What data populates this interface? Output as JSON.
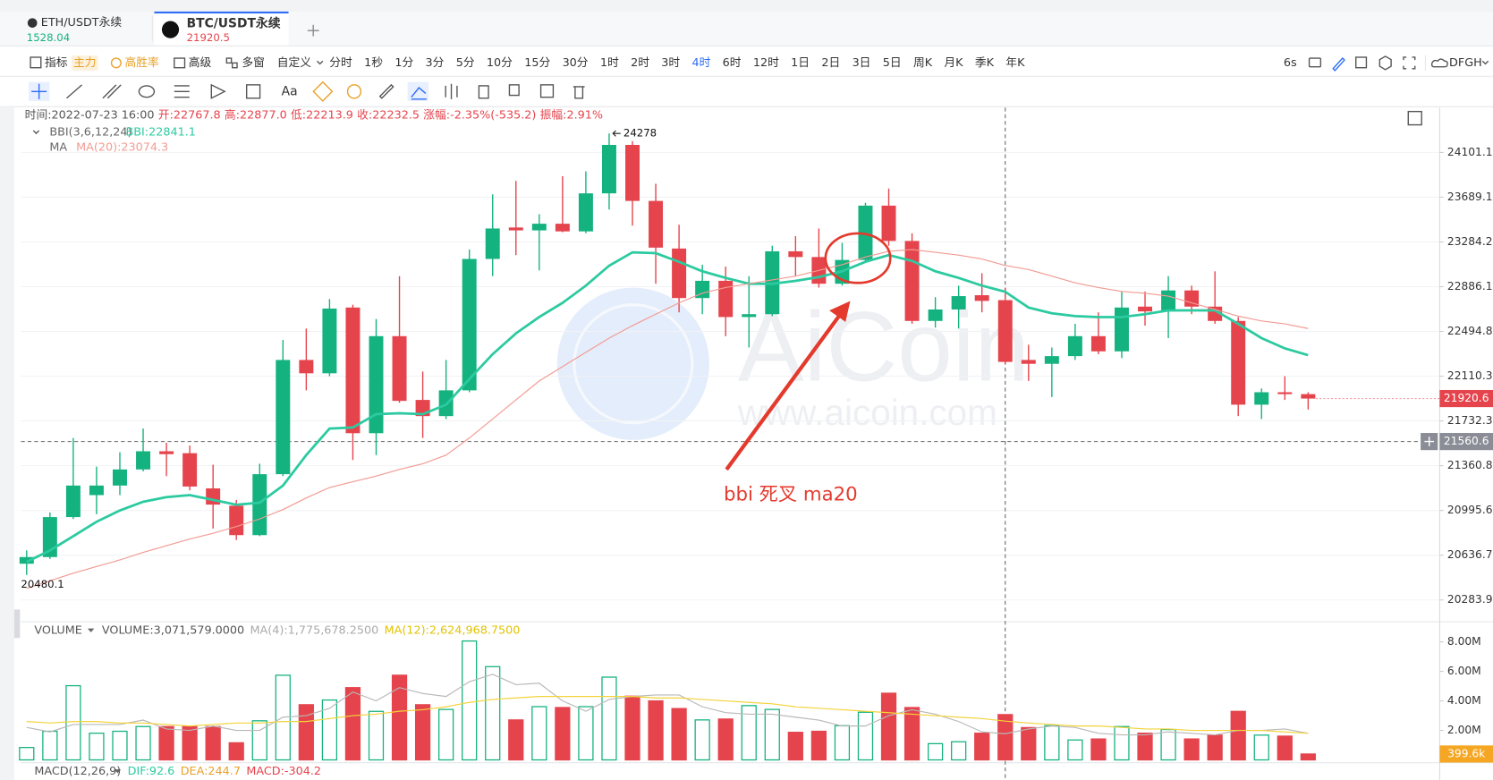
{
  "tabs": [
    {
      "symbol": "ETH/USDT永续",
      "price": "1528.04"
    },
    {
      "symbol": "BTC/USDT永续",
      "price": "21920.5"
    }
  ],
  "toolbar": {
    "tools": [
      "指标",
      "主力",
      "高胜率",
      "高级",
      "多窗",
      "自定义"
    ],
    "intervals": [
      "分时",
      "1秒",
      "1分",
      "3分",
      "5分",
      "10分",
      "15分",
      "30分",
      "1时",
      "2时",
      "3时",
      "4时",
      "6时",
      "12时",
      "1日",
      "2日",
      "3日",
      "5日",
      "周K",
      "月K",
      "季K",
      "年K"
    ],
    "active_interval": 11,
    "refresh": "6s",
    "user": "DFGH"
  },
  "drawing_toolbar": {
    "text_tool": "Aa"
  },
  "info_bar": [
    "时间:2022-07-23 16:00",
    "开:22767.8",
    "高:22877.0",
    "低:22213.9",
    "收:22232.5",
    "涨幅:-2.35%(-535.2)",
    "振幅:2.91%"
  ],
  "indicators": {
    "bbi_name": "BBI(3,6,12,24)",
    "bbi_value": "BBI:22841.1",
    "ma_name": "MA",
    "ma_value": "MA(20):23074.3"
  },
  "watermark": {
    "brand": "AiCoin",
    "url": "www.aicoin.com"
  },
  "annotation": "bbi 死叉 ma20",
  "volume_header": {
    "name": "VOLUME",
    "values": [
      "VOLUME:3,071,579.0000",
      "MA(4):1,775,678.2500",
      "MA(12):2,624,968.7500"
    ]
  },
  "macd_header": [
    "MACD(12,26,9)",
    "DIF:92.6",
    "DEA:244.7",
    "MACD:-304.2"
  ],
  "chart_data": [
    {
      "type": "candlestick",
      "open": [
        20569,
        20622,
        20942,
        21120,
        21198,
        21330,
        21480,
        21464,
        21175,
        21034,
        20797,
        21291,
        22249,
        22135,
        22703,
        21630,
        22454,
        21909,
        21773,
        21990,
        23132,
        23414,
        23388,
        23448,
        23379,
        23724,
        24171,
        23655,
        23225,
        22786,
        22938,
        22620,
        22645,
        23200,
        23149,
        22912,
        23123,
        23612,
        23293,
        22586,
        22686,
        22811,
        22767.8,
        22249,
        22216,
        22282,
        22454,
        22323,
        22711,
        22669,
        22853,
        22711,
        22586,
        21869,
        21974,
        21958
      ],
      "high": [
        20675,
        20980,
        21590,
        21353,
        21472,
        21669,
        21551,
        21527,
        21369,
        21081,
        21377,
        22421,
        22520,
        22778,
        22728,
        22603,
        22979,
        22150,
        22249,
        23216,
        23715,
        23838,
        23534,
        23882,
        23926,
        24278,
        24206,
        23812,
        23439,
        23081,
        23064,
        22979,
        23250,
        23336,
        23405,
        23276,
        23638,
        23768,
        23362,
        22794,
        22895,
        23005,
        22877.0,
        22380,
        22356,
        22561,
        22661,
        22844,
        22844,
        22979,
        22895,
        23022,
        22620,
        22006,
        22110,
        21974
      ],
      "low": [
        20480.1,
        20607,
        20927,
        20965,
        21120,
        21314,
        21275,
        21159,
        20850,
        20758,
        20789,
        21275,
        21990,
        22110,
        21408,
        21448,
        21885,
        21590,
        21748,
        21974,
        22979,
        23166,
        23030,
        23371,
        23362,
        23577,
        23431,
        22912,
        22661,
        22645,
        22454,
        22356,
        22628,
        22979,
        22878,
        22895,
        23106,
        23250,
        22561,
        22528,
        22520,
        22661,
        22213.9,
        22070,
        21933,
        22249,
        22298,
        22265,
        22545,
        22437,
        22645,
        22561,
        21773,
        21748,
        21909,
        21828
      ],
      "close": [
        20622,
        20942,
        21198,
        21198,
        21330,
        21480,
        21456,
        21190,
        21043,
        20797,
        21291,
        22249,
        22135,
        22694,
        21630,
        22454,
        21901,
        21773,
        21990,
        23132,
        23405,
        23388,
        23448,
        23379,
        23724,
        24171,
        23655,
        23233,
        22786,
        22938,
        22620,
        22645,
        23200,
        23149,
        22912,
        23123,
        23612,
        23293,
        22586,
        22686,
        22803,
        22761,
        22232.5,
        22216,
        22282,
        22454,
        22323,
        22703,
        22669,
        22853,
        22711,
        22586,
        21869,
        21974,
        21958,
        21920.6
      ],
      "up_color": "#14b27f",
      "down_color": "#e5444d",
      "series": [
        {
          "color": "#2ccaa0",
          "values": [
            20584,
            20675,
            20789,
            20904,
            20996,
            21066,
            21104,
            21120,
            21081,
            21042,
            21058,
            21198,
            21448,
            21669,
            21677,
            21789,
            21797,
            21789,
            21869,
            22086,
            22298,
            22478,
            22620,
            22744,
            22895,
            23072,
            23191,
            23183,
            23106,
            23022,
            22963,
            22912,
            22912,
            22937,
            22971,
            23022,
            23106,
            23166,
            23115,
            23022,
            22963,
            22895,
            22841.1,
            22703,
            22653,
            22628,
            22620,
            22620,
            22645,
            22678,
            22678,
            22678,
            22561,
            22437,
            22348,
            22290
          ]
        },
        {
          "color": "#f29b93",
          "values": [
            20374,
            20434,
            20494,
            20547,
            20599,
            20659,
            20713,
            20766,
            20812,
            20866,
            20927,
            21003,
            21097,
            21182,
            21229,
            21275,
            21330,
            21377,
            21448,
            21590,
            21748,
            21909,
            22070,
            22192,
            22315,
            22437,
            22545,
            22645,
            22744,
            22828,
            22878,
            22912,
            22946,
            22979,
            23030,
            23081,
            23149,
            23200,
            23216,
            23191,
            23166,
            23132,
            23074.3,
            23038,
            22979,
            22920,
            22878,
            22844,
            22828,
            22803,
            22744,
            22686,
            22628,
            22586,
            22561,
            22520
          ]
        }
      ],
      "ylim": [
        20121,
        24520
      ],
      "yticks": [
        20283.9,
        20636.7,
        20995.6,
        21360.8,
        21732.3,
        22110.3,
        22494.8,
        22886.1,
        23284.2,
        23689.1,
        24101.1
      ],
      "log_scale": true,
      "grid": true,
      "max_label": 24278,
      "min_label": 20480.1,
      "last_price": 21920.6,
      "crosshair_price": 21560.6,
      "crosshair_index": 42
    },
    {
      "type": "bar",
      "values": [
        0.84,
        1.94,
        5.03,
        1.81,
        1.94,
        2.26,
        2.26,
        2.26,
        2.26,
        1.16,
        2.65,
        5.74,
        3.74,
        4.06,
        4.9,
        3.29,
        5.74,
        3.74,
        3.42,
        8.06,
        6.32,
        2.71,
        3.61,
        3.55,
        3.61,
        5.61,
        4.32,
        4.0,
        3.48,
        2.71,
        2.77,
        3.68,
        3.42,
        1.87,
        1.94,
        2.32,
        3.23,
        4.52,
        3.55,
        1.1,
        1.23,
        1.81,
        3.071579,
        2.19,
        2.32,
        1.35,
        1.42,
        2.26,
        1.81,
        2.06,
        1.42,
        1.68,
        3.29,
        1.68,
        1.61,
        0.3996
      ],
      "series": [
        {
          "color": "#b8b8b8",
          "values": [
            2.2,
            1.9,
            2.4,
            2.4,
            2.4,
            2.7,
            2.1,
            2.0,
            2.3,
            2.0,
            2.0,
            2.9,
            3.0,
            3.5,
            4.6,
            4.0,
            4.9,
            4.5,
            4.3,
            5.3,
            5.8,
            5.1,
            5.2,
            4.0,
            3.3,
            4.1,
            4.3,
            4.4,
            4.4,
            3.6,
            3.2,
            3.1,
            3.1,
            2.9,
            2.7,
            2.3,
            2.3,
            3.0,
            3.4,
            3.1,
            2.6,
            1.9,
            1.77567825,
            2.1,
            2.3,
            2.2,
            1.8,
            1.7,
            1.7,
            1.9,
            1.8,
            1.7,
            2.0,
            2.0,
            2.1,
            1.8
          ]
        },
        {
          "color": "#f3d33b",
          "values": [
            2.6,
            2.5,
            2.6,
            2.6,
            2.5,
            2.5,
            2.4,
            2.3,
            2.4,
            2.5,
            2.5,
            2.6,
            2.6,
            2.8,
            3.0,
            3.1,
            3.3,
            3.4,
            3.6,
            3.9,
            4.1,
            4.2,
            4.3,
            4.3,
            4.3,
            4.3,
            4.3,
            4.2,
            4.2,
            4.1,
            4.0,
            3.9,
            3.8,
            3.6,
            3.5,
            3.4,
            3.3,
            3.2,
            3.1,
            3.0,
            2.9,
            2.8,
            2.62496875,
            2.5,
            2.4,
            2.3,
            2.3,
            2.2,
            2.1,
            2.1,
            2.0,
            2.0,
            2.0,
            2.0,
            1.9,
            1.8
          ]
        }
      ],
      "ylim": [
        0,
        9.23
      ],
      "yticks": [
        {
          "value": 2,
          "label": "2.00M"
        },
        {
          "value": 4,
          "label": "4.00M"
        },
        {
          "value": 6,
          "label": "6.00M"
        },
        {
          "value": 8,
          "label": "8.00M"
        }
      ],
      "last_label": {
        "value": 0.3996,
        "label": "399.6k"
      }
    }
  ]
}
